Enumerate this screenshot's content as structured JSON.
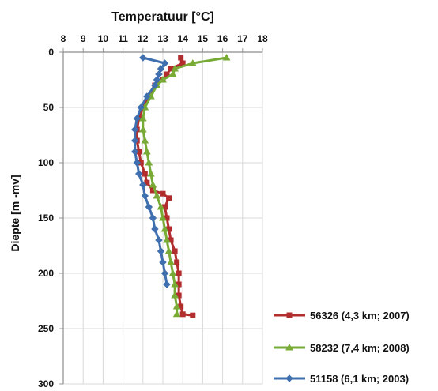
{
  "chart_data": {
    "type": "line",
    "title": "Temperatuur [°C]",
    "xlabel": "",
    "ylabel": "Diepte [m -mv]",
    "x_axis": {
      "position": "top",
      "min": 8,
      "max": 18,
      "ticks": [
        8,
        9,
        10,
        11,
        12,
        13,
        14,
        15,
        16,
        17,
        18
      ],
      "tick_labels": [
        "8",
        "9",
        "10",
        "11",
        "12",
        "13",
        "14",
        "15",
        "16",
        "17",
        "18"
      ]
    },
    "y_axis": {
      "reversed": true,
      "min": 0,
      "max": 300,
      "ticks": [
        0,
        50,
        100,
        150,
        200,
        250,
        300
      ],
      "tick_labels": [
        "0",
        "50",
        "100",
        "150",
        "200",
        "250",
        "300"
      ]
    },
    "grid": true,
    "legend_position": "bottom-right",
    "series": [
      {
        "name": "56326 (4,3 km; 2007)",
        "color": "#b22d2d",
        "marker": "square",
        "points": [
          {
            "temperature": 13.9,
            "depth": 5
          },
          {
            "temperature": 14.0,
            "depth": 10
          },
          {
            "temperature": 13.4,
            "depth": 15
          },
          {
            "temperature": 13.2,
            "depth": 20
          },
          {
            "temperature": 13.0,
            "depth": 25
          },
          {
            "temperature": 12.6,
            "depth": 30
          },
          {
            "temperature": 12.3,
            "depth": 40
          },
          {
            "temperature": 12.0,
            "depth": 50
          },
          {
            "temperature": 11.8,
            "depth": 60
          },
          {
            "temperature": 11.7,
            "depth": 70
          },
          {
            "temperature": 11.7,
            "depth": 80
          },
          {
            "temperature": 11.8,
            "depth": 90
          },
          {
            "temperature": 11.9,
            "depth": 100
          },
          {
            "temperature": 12.1,
            "depth": 110
          },
          {
            "temperature": 12.2,
            "depth": 118
          },
          {
            "temperature": 12.5,
            "depth": 125
          },
          {
            "temperature": 13.0,
            "depth": 128
          },
          {
            "temperature": 13.3,
            "depth": 132
          },
          {
            "temperature": 13.1,
            "depth": 140
          },
          {
            "temperature": 13.2,
            "depth": 150
          },
          {
            "temperature": 13.3,
            "depth": 160
          },
          {
            "temperature": 13.4,
            "depth": 170
          },
          {
            "temperature": 13.6,
            "depth": 180
          },
          {
            "temperature": 13.7,
            "depth": 190
          },
          {
            "temperature": 13.8,
            "depth": 200
          },
          {
            "temperature": 13.8,
            "depth": 210
          },
          {
            "temperature": 13.8,
            "depth": 220
          },
          {
            "temperature": 13.9,
            "depth": 230
          },
          {
            "temperature": 14.0,
            "depth": 237
          },
          {
            "temperature": 14.5,
            "depth": 238
          }
        ]
      },
      {
        "name": "58232 (7,4 km; 2008)",
        "color": "#78ab35",
        "marker": "triangle",
        "points": [
          {
            "temperature": 16.2,
            "depth": 5
          },
          {
            "temperature": 14.5,
            "depth": 10
          },
          {
            "temperature": 13.6,
            "depth": 15
          },
          {
            "temperature": 13.5,
            "depth": 20
          },
          {
            "temperature": 13.0,
            "depth": 25
          },
          {
            "temperature": 12.7,
            "depth": 30
          },
          {
            "temperature": 12.4,
            "depth": 40
          },
          {
            "temperature": 12.1,
            "depth": 50
          },
          {
            "temperature": 12.0,
            "depth": 60
          },
          {
            "temperature": 12.0,
            "depth": 70
          },
          {
            "temperature": 12.1,
            "depth": 80
          },
          {
            "temperature": 12.2,
            "depth": 90
          },
          {
            "temperature": 12.3,
            "depth": 100
          },
          {
            "temperature": 12.4,
            "depth": 110
          },
          {
            "temperature": 12.5,
            "depth": 120
          },
          {
            "temperature": 12.7,
            "depth": 130
          },
          {
            "temperature": 12.9,
            "depth": 140
          },
          {
            "temperature": 13.0,
            "depth": 150
          },
          {
            "temperature": 13.1,
            "depth": 160
          },
          {
            "temperature": 13.2,
            "depth": 170
          },
          {
            "temperature": 13.3,
            "depth": 180
          },
          {
            "temperature": 13.4,
            "depth": 190
          },
          {
            "temperature": 13.5,
            "depth": 200
          },
          {
            "temperature": 13.6,
            "depth": 210
          },
          {
            "temperature": 13.6,
            "depth": 220
          },
          {
            "temperature": 13.7,
            "depth": 230
          },
          {
            "temperature": 13.7,
            "depth": 237
          }
        ]
      },
      {
        "name": "51158 (6,1 km; 2003)",
        "color": "#3f6fae",
        "marker": "diamond",
        "points": [
          {
            "temperature": 12.0,
            "depth": 5
          },
          {
            "temperature": 13.1,
            "depth": 10
          },
          {
            "temperature": 12.9,
            "depth": 15
          },
          {
            "temperature": 12.8,
            "depth": 20
          },
          {
            "temperature": 12.7,
            "depth": 25
          },
          {
            "temperature": 12.6,
            "depth": 30
          },
          {
            "temperature": 12.2,
            "depth": 40
          },
          {
            "temperature": 11.9,
            "depth": 50
          },
          {
            "temperature": 11.7,
            "depth": 60
          },
          {
            "temperature": 11.6,
            "depth": 70
          },
          {
            "temperature": 11.6,
            "depth": 80
          },
          {
            "temperature": 11.6,
            "depth": 90
          },
          {
            "temperature": 11.7,
            "depth": 100
          },
          {
            "temperature": 11.8,
            "depth": 110
          },
          {
            "temperature": 12.0,
            "depth": 120
          },
          {
            "temperature": 12.1,
            "depth": 130
          },
          {
            "temperature": 12.3,
            "depth": 140
          },
          {
            "temperature": 12.5,
            "depth": 150
          },
          {
            "temperature": 12.6,
            "depth": 160
          },
          {
            "temperature": 12.8,
            "depth": 170
          },
          {
            "temperature": 12.9,
            "depth": 180
          },
          {
            "temperature": 13.0,
            "depth": 190
          },
          {
            "temperature": 13.1,
            "depth": 200
          },
          {
            "temperature": 13.2,
            "depth": 210
          }
        ]
      }
    ]
  }
}
